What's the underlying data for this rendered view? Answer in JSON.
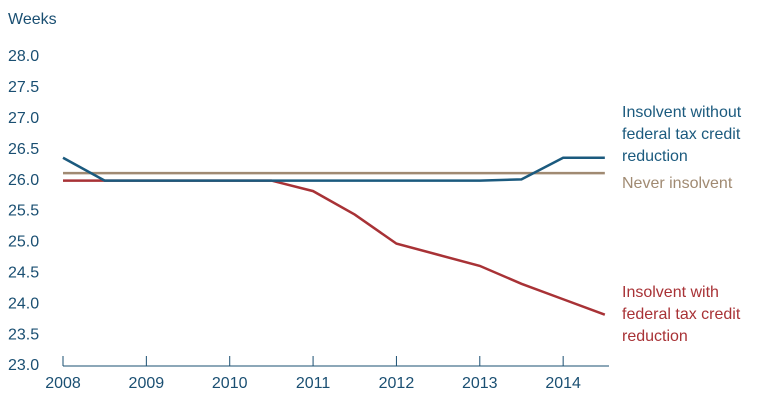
{
  "chart_data": {
    "type": "line",
    "y_label": "Weeks",
    "x": [
      2008,
      2008.5,
      2009,
      2009.5,
      2010,
      2010.5,
      2011,
      2011.5,
      2012,
      2012.5,
      2013,
      2013.5,
      2014,
      2014.5
    ],
    "series": [
      {
        "name": "Insolvent without federal tax credit reduction",
        "color": "#1b5a7e",
        "values": [
          26.37,
          26.0,
          26.0,
          26.0,
          26.0,
          26.0,
          26.0,
          26.0,
          26.0,
          26.0,
          26.0,
          26.02,
          26.37,
          26.37
        ]
      },
      {
        "name": "Never insolvent",
        "color": "#a08a72",
        "values": [
          26.12,
          26.12,
          26.12,
          26.12,
          26.12,
          26.12,
          26.12,
          26.12,
          26.12,
          26.12,
          26.12,
          26.12,
          26.12,
          26.12
        ]
      },
      {
        "name": "Insolvent with federal tax credit reduction",
        "color": "#a83236",
        "values": [
          26.0,
          26.0,
          26.0,
          26.0,
          26.0,
          26.0,
          25.83,
          25.45,
          24.98,
          24.8,
          24.62,
          24.33,
          24.08,
          23.83
        ]
      }
    ],
    "xlim": [
      2008,
      2014.55
    ],
    "xticks": [
      2008,
      2009,
      2010,
      2011,
      2012,
      2013,
      2014
    ],
    "ylim": [
      23,
      28
    ],
    "yticks": [
      {
        "value": 23,
        "label": "23.0"
      },
      23.5,
      {
        "value": 24,
        "label": "24.0"
      },
      24.5,
      {
        "value": 25,
        "label": "25.0"
      },
      25.5,
      {
        "value": 26,
        "label": "26.0"
      },
      26.5,
      {
        "value": 27,
        "label": "27.0"
      },
      27.5,
      {
        "value": 28,
        "label": "28.0"
      }
    ],
    "grid": false
  }
}
